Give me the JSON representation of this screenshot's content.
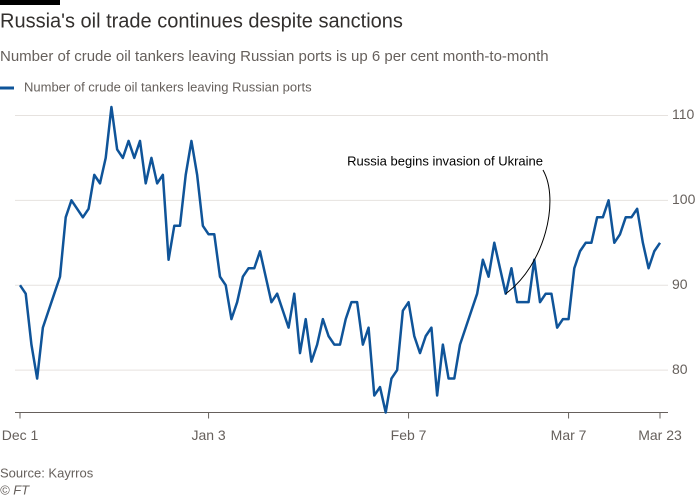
{
  "chart_data": {
    "type": "line",
    "title": "Russia's oil trade continues despite sanctions",
    "subtitle": "Number of crude oil tankers leaving Russian ports is up 6 per cent month-to-month",
    "x": [
      "Dec 1",
      "Dec 2",
      "Dec 3",
      "Dec 4",
      "Dec 5",
      "Dec 6",
      "Dec 7",
      "Dec 8",
      "Dec 9",
      "Dec 10",
      "Dec 11",
      "Dec 12",
      "Dec 13",
      "Dec 14",
      "Dec 15",
      "Dec 16",
      "Dec 17",
      "Dec 18",
      "Dec 19",
      "Dec 20",
      "Dec 21",
      "Dec 22",
      "Dec 23",
      "Dec 24",
      "Dec 25",
      "Dec 26",
      "Dec 27",
      "Dec 28",
      "Dec 29",
      "Dec 30",
      "Dec 31",
      "Jan 1",
      "Jan 2",
      "Jan 3",
      "Jan 4",
      "Jan 5",
      "Jan 6",
      "Jan 7",
      "Jan 8",
      "Jan 9",
      "Jan 10",
      "Jan 11",
      "Jan 12",
      "Jan 13",
      "Jan 14",
      "Jan 15",
      "Jan 16",
      "Jan 17",
      "Jan 18",
      "Jan 19",
      "Jan 20",
      "Jan 21",
      "Jan 22",
      "Jan 23",
      "Jan 24",
      "Jan 25",
      "Jan 26",
      "Jan 27",
      "Jan 28",
      "Jan 29",
      "Jan 30",
      "Jan 31",
      "Feb 1",
      "Feb 2",
      "Feb 3",
      "Feb 4",
      "Feb 5",
      "Feb 6",
      "Feb 7",
      "Feb 8",
      "Feb 9",
      "Feb 10",
      "Feb 11",
      "Feb 12",
      "Feb 13",
      "Feb 14",
      "Feb 15",
      "Feb 16",
      "Feb 17",
      "Feb 18",
      "Feb 19",
      "Feb 20",
      "Feb 21",
      "Feb 22",
      "Feb 23",
      "Feb 24",
      "Feb 25",
      "Feb 26",
      "Feb 27",
      "Feb 28",
      "Mar 1",
      "Mar 2",
      "Mar 3",
      "Mar 4",
      "Mar 5",
      "Mar 6",
      "Mar 7",
      "Mar 8",
      "Mar 9",
      "Mar 10",
      "Mar 11",
      "Mar 12",
      "Mar 13",
      "Mar 14",
      "Mar 15",
      "Mar 16",
      "Mar 17",
      "Mar 18",
      "Mar 19",
      "Mar 20",
      "Mar 21",
      "Mar 22",
      "Mar 23"
    ],
    "series": [
      {
        "name": "Number of crude oil tankers leaving Russian ports",
        "color": "#0f5499",
        "values": [
          90,
          89,
          83,
          79,
          85,
          87,
          89,
          91,
          98,
          100,
          99,
          98,
          99,
          103,
          102,
          105,
          111,
          106,
          105,
          107,
          105,
          107,
          102,
          105,
          102,
          103,
          93,
          97,
          97,
          103,
          107,
          103,
          97,
          96,
          96,
          91,
          90,
          86,
          88,
          91,
          92,
          92,
          94,
          91,
          88,
          89,
          87,
          85,
          89,
          82,
          86,
          81,
          83,
          86,
          84,
          83,
          83,
          86,
          88,
          88,
          83,
          85,
          77,
          78,
          75,
          79,
          80,
          87,
          88,
          84,
          82,
          84,
          85,
          77,
          83,
          79,
          79,
          83,
          85,
          87,
          89,
          93,
          91,
          95,
          92,
          89,
          92,
          88,
          88,
          88,
          93,
          88,
          89,
          89,
          85,
          86,
          86,
          92,
          94,
          95,
          95,
          98,
          98,
          100,
          95,
          96,
          98,
          98,
          99,
          95,
          92,
          94,
          95
        ]
      }
    ],
    "xticks": [
      "Dec 1",
      "Jan 3",
      "Feb 7",
      "Mar 7",
      "Mar 23"
    ],
    "ylim": [
      75,
      112
    ],
    "yticks": [
      80,
      90,
      100,
      110
    ],
    "grid": true,
    "annotation": {
      "text": "Russia begins invasion of Ukraine",
      "x": "Feb 24"
    },
    "source": "Source: Kayrros",
    "credit": "© FT"
  }
}
